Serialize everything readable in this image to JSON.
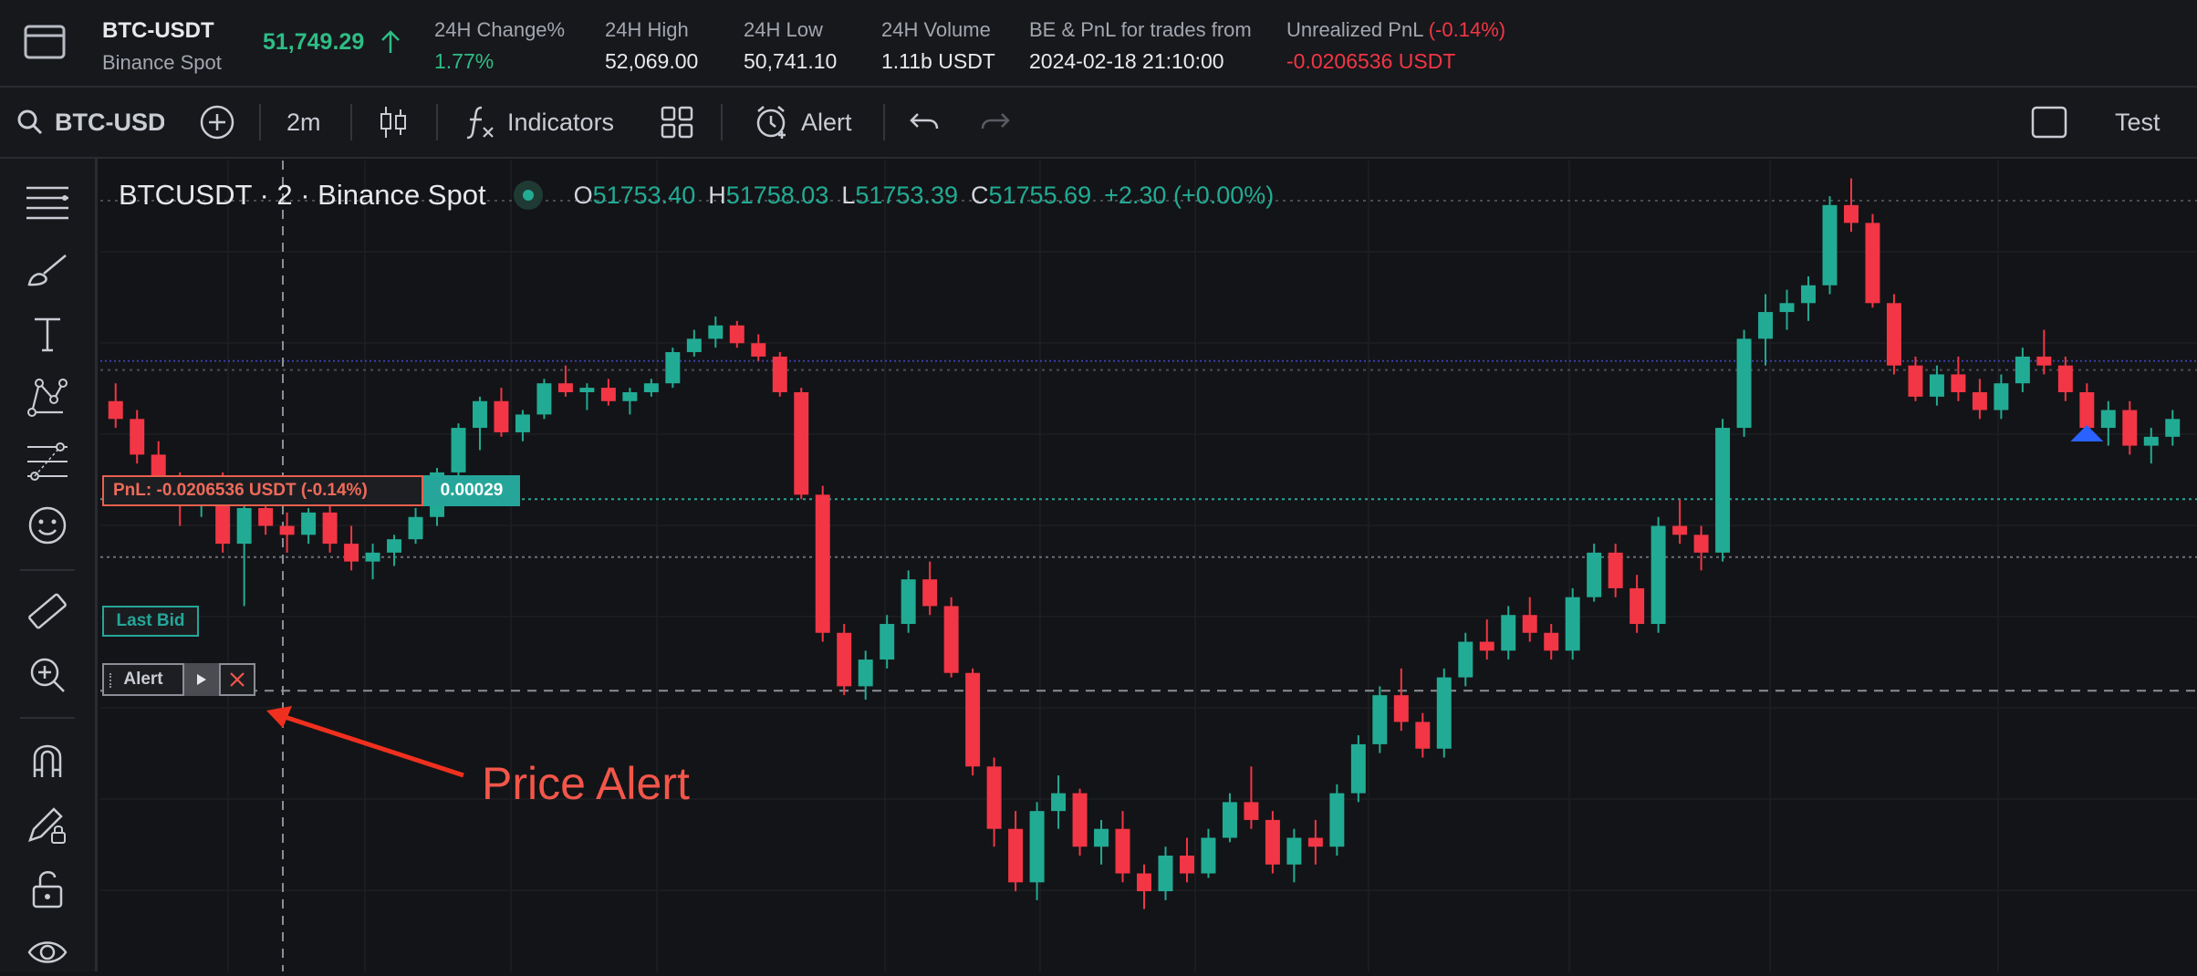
{
  "ticker": {
    "symbol": "BTC-USDT",
    "exchange": "Binance Spot",
    "price": "51,749.29",
    "stats": [
      {
        "label": "24H Change%",
        "value": "1.77%",
        "tone": "green"
      },
      {
        "label": "24H High",
        "value": "52,069.00",
        "tone": "white"
      },
      {
        "label": "24H Low",
        "value": "50,741.10",
        "tone": "white"
      },
      {
        "label": "24H Volume",
        "value": "1.11b USDT",
        "tone": "white"
      },
      {
        "label": "BE & PnL for trades from",
        "value": "2024-02-18 21:10:00",
        "tone": "white"
      }
    ],
    "unrealized": {
      "label": "Unrealized PnL",
      "pct": "(-0.14%)",
      "value": "-0.0206536 USDT"
    }
  },
  "toolbar": {
    "search_value": "BTC-USD",
    "interval": "2m",
    "indicators_label": "Indicators",
    "alert_label": "Alert",
    "test_label": "Test"
  },
  "legend": {
    "title": "BTCUSDT · 2 · Binance Spot",
    "o_key": "O",
    "o": "51753.40",
    "h_key": "H",
    "h": "51758.03",
    "l_key": "L",
    "l": "51753.39",
    "c_key": "C",
    "c": "51755.69",
    "change": "+2.30 (+0.00%)"
  },
  "overlays": {
    "pnl_label": "PnL: -0.0206536 USDT (-0.14%)",
    "pnl_qty": "0.00029",
    "last_bid_label": "Last Bid",
    "alert_label": "Alert",
    "annotation": "Price Alert"
  },
  "colors": {
    "up": "#22ab94",
    "down": "#f23645",
    "annotation": "#f2564a"
  },
  "chart_data": {
    "type": "candlestick",
    "symbol": "BTCUSDT",
    "interval": "2",
    "note_series": "approximate OHLC sequence (candles left to right)",
    "candles": [
      [
        51744,
        51748,
        51738,
        51740
      ],
      [
        51740,
        51742,
        51730,
        51732
      ],
      [
        51732,
        51735,
        51722,
        51724
      ],
      [
        51724,
        51728,
        51716,
        51722
      ],
      [
        51722,
        51727,
        51718,
        51726
      ],
      [
        51726,
        51728,
        51710,
        51712
      ],
      [
        51712,
        51722,
        51698,
        51720
      ],
      [
        51720,
        51724,
        51714,
        51716
      ],
      [
        51716,
        51719,
        51710,
        51714
      ],
      [
        51714,
        51720,
        51712,
        51719
      ],
      [
        51719,
        51722,
        51710,
        51712
      ],
      [
        51712,
        51716,
        51706,
        51708
      ],
      [
        51708,
        51712,
        51704,
        51710
      ],
      [
        51710,
        51714,
        51707,
        51713
      ],
      [
        51713,
        51720,
        51712,
        51718
      ],
      [
        51718,
        51729,
        51716,
        51728
      ],
      [
        51728,
        51739,
        51727,
        51738
      ],
      [
        51738,
        51745,
        51733,
        51744
      ],
      [
        51744,
        51747,
        51736,
        51737
      ],
      [
        51737,
        51742,
        51735,
        51741
      ],
      [
        51741,
        51749,
        51740,
        51748
      ],
      [
        51748,
        51752,
        51745,
        51746
      ],
      [
        51746,
        51748,
        51742,
        51747
      ],
      [
        51747,
        51749,
        51743,
        51744
      ],
      [
        51744,
        51747,
        51741,
        51746
      ],
      [
        51746,
        51749,
        51745,
        51748
      ],
      [
        51748,
        51756,
        51747,
        51755
      ],
      [
        51755,
        51760,
        51754,
        51758
      ],
      [
        51758,
        51763,
        51756,
        51761
      ],
      [
        51761,
        51762,
        51756,
        51757
      ],
      [
        51757,
        51759,
        51753,
        51754
      ],
      [
        51754,
        51755,
        51745,
        51746
      ],
      [
        51746,
        51747,
        51722,
        51723
      ],
      [
        51723,
        51725,
        51690,
        51692
      ],
      [
        51692,
        51694,
        51678,
        51680
      ],
      [
        51680,
        51688,
        51677,
        51686
      ],
      [
        51686,
        51696,
        51684,
        51694
      ],
      [
        51694,
        51706,
        51692,
        51704
      ],
      [
        51704,
        51708,
        51696,
        51698
      ],
      [
        51698,
        51700,
        51682,
        51683
      ],
      [
        51683,
        51684,
        51660,
        51662
      ],
      [
        51662,
        51664,
        51644,
        51648
      ],
      [
        51648,
        51652,
        51634,
        51636
      ],
      [
        51636,
        51654,
        51632,
        51652
      ],
      [
        51652,
        51660,
        51648,
        51656
      ],
      [
        51656,
        51657,
        51642,
        51644
      ],
      [
        51644,
        51650,
        51640,
        51648
      ],
      [
        51648,
        51652,
        51636,
        51638
      ],
      [
        51638,
        51640,
        51630,
        51634
      ],
      [
        51634,
        51644,
        51632,
        51642
      ],
      [
        51642,
        51646,
        51636,
        51638
      ],
      [
        51638,
        51648,
        51637,
        51646
      ],
      [
        51646,
        51656,
        51645,
        51654
      ],
      [
        51654,
        51662,
        51648,
        51650
      ],
      [
        51650,
        51652,
        51638,
        51640
      ],
      [
        51640,
        51648,
        51636,
        51646
      ],
      [
        51646,
        51650,
        51640,
        51644
      ],
      [
        51644,
        51658,
        51642,
        51656
      ],
      [
        51656,
        51669,
        51654,
        51667
      ],
      [
        51667,
        51680,
        51665,
        51678
      ],
      [
        51678,
        51684,
        51670,
        51672
      ],
      [
        51672,
        51674,
        51664,
        51666
      ],
      [
        51666,
        51684,
        51664,
        51682
      ],
      [
        51682,
        51692,
        51680,
        51690
      ],
      [
        51690,
        51695,
        51686,
        51688
      ],
      [
        51688,
        51698,
        51686,
        51696
      ],
      [
        51696,
        51700,
        51690,
        51692
      ],
      [
        51692,
        51694,
        51686,
        51688
      ],
      [
        51688,
        51702,
        51686,
        51700
      ],
      [
        51700,
        51712,
        51699,
        51710
      ],
      [
        51710,
        51712,
        51700,
        51702
      ],
      [
        51702,
        51705,
        51692,
        51694
      ],
      [
        51694,
        51718,
        51692,
        51716
      ],
      [
        51716,
        51722,
        51712,
        51714
      ],
      [
        51714,
        51716,
        51706,
        51710
      ],
      [
        51710,
        51740,
        51708,
        51738
      ],
      [
        51738,
        51760,
        51736,
        51758
      ],
      [
        51758,
        51768,
        51752,
        51764
      ],
      [
        51764,
        51769,
        51760,
        51766
      ],
      [
        51766,
        51772,
        51762,
        51770
      ],
      [
        51770,
        51790,
        51768,
        51788
      ],
      [
        51788,
        51794,
        51782,
        51784
      ],
      [
        51784,
        51786,
        51765,
        51766
      ],
      [
        51766,
        51768,
        51750,
        51752
      ],
      [
        51752,
        51754,
        51744,
        51745
      ],
      [
        51745,
        51752,
        51743,
        51750
      ],
      [
        51750,
        51754,
        51744,
        51746
      ],
      [
        51746,
        51749,
        51740,
        51742
      ],
      [
        51742,
        51750,
        51740,
        51748
      ],
      [
        51748,
        51756,
        51746,
        51754
      ],
      [
        51754,
        51760,
        51750,
        51752
      ],
      [
        51752,
        51754,
        51744,
        51746
      ],
      [
        51746,
        51748,
        51736,
        51738
      ],
      [
        51738,
        51744,
        51734,
        51742
      ],
      [
        51742,
        51744,
        51732,
        51734
      ],
      [
        51734,
        51738,
        51730,
        51736
      ],
      [
        51736,
        51742,
        51734,
        51740
      ]
    ]
  }
}
